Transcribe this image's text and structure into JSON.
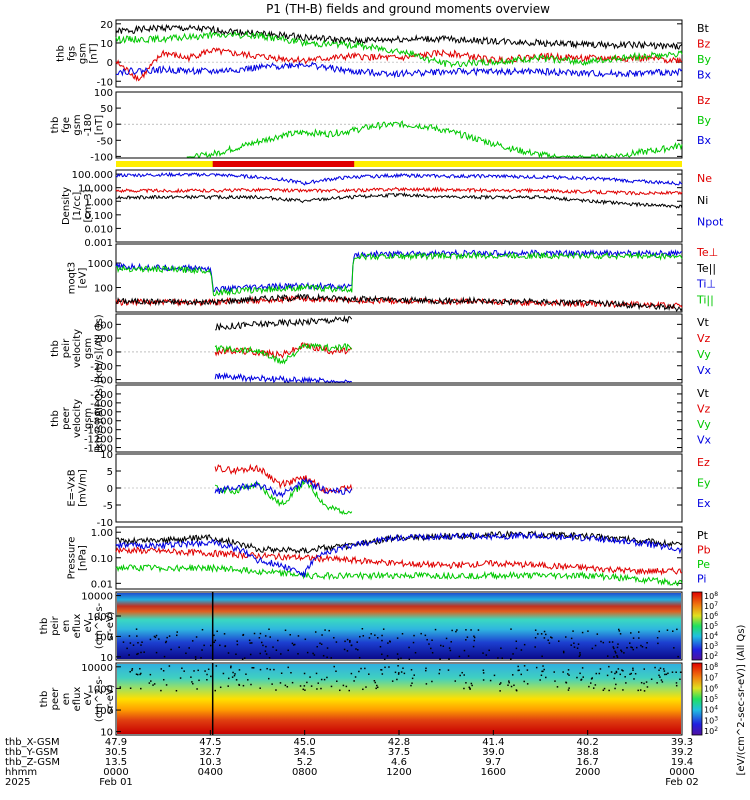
{
  "title": "P1 (TH-B) fields and ground moments overview",
  "colors": {
    "black": "#000000",
    "red": "#e00000",
    "green": "#00c800",
    "blue": "#0000e0",
    "yellow": "#ffee00"
  },
  "chart_data": [
    {
      "type": "line",
      "id": "fgs",
      "ylabel": [
        "thb",
        "fgs",
        "gsm",
        "[nT]"
      ],
      "yticks": [
        {
          "v": 20,
          "label": "20"
        },
        {
          "v": 10,
          "label": "10"
        },
        {
          "v": 0,
          "label": "0"
        },
        {
          "v": -10,
          "label": "-10"
        }
      ],
      "ylim": [
        -13,
        22
      ],
      "series": [
        {
          "name": "Bt",
          "color": "black",
          "x": [
            0,
            2,
            4,
            6,
            8,
            10,
            12,
            14,
            16,
            18,
            20,
            22,
            24
          ],
          "y": [
            16,
            18,
            17,
            15,
            13,
            11,
            12,
            12,
            11,
            10,
            9,
            9,
            8
          ]
        },
        {
          "name": "Bz",
          "color": "red",
          "x": [
            0,
            1,
            2,
            3,
            4,
            6,
            8,
            10,
            12,
            14,
            16,
            18,
            20,
            22,
            24
          ],
          "y": [
            0,
            -9,
            5,
            2,
            6,
            3,
            1,
            3,
            2,
            5,
            1,
            3,
            2,
            2,
            1
          ]
        },
        {
          "name": "By",
          "color": "green",
          "x": [
            0,
            2,
            4,
            6,
            8,
            10,
            12,
            14,
            16,
            18,
            20,
            22,
            24
          ],
          "y": [
            12,
            12,
            14,
            14,
            10,
            9,
            6,
            -1,
            0,
            2,
            0,
            3,
            4
          ]
        },
        {
          "name": "Bx",
          "color": "blue",
          "x": [
            0,
            2,
            4,
            6,
            8,
            10,
            12,
            14,
            16,
            18,
            20,
            22,
            24
          ],
          "y": [
            -5,
            -4,
            -5,
            -3,
            -1,
            -5,
            -6,
            -5,
            -5,
            -5,
            -6,
            -6,
            -5
          ]
        }
      ]
    },
    {
      "type": "line",
      "id": "fge",
      "ylabel": [
        "thb",
        "fge",
        "gsm",
        "-180",
        "[nT]"
      ],
      "yticks": [
        {
          "v": 100,
          "label": "100"
        },
        {
          "v": 50,
          "label": "50"
        },
        {
          "v": 0,
          "label": "0"
        },
        {
          "v": -50,
          "label": "-50"
        },
        {
          "v": -100,
          "label": "-100"
        }
      ],
      "ylim": [
        -105,
        100
      ],
      "legend_only": [
        "Bz",
        "By",
        "Bx"
      ],
      "series": [
        {
          "name": "By",
          "color": "green",
          "x": [
            3,
            4,
            5,
            6,
            7,
            8,
            9,
            10,
            11,
            12,
            13,
            14,
            15,
            16,
            17,
            18,
            19,
            20,
            21,
            22,
            23,
            24
          ],
          "y": [
            -105,
            -95,
            -75,
            -55,
            -35,
            -25,
            -30,
            -20,
            -5,
            0,
            -5,
            -20,
            -40,
            -60,
            -80,
            -95,
            -105,
            -105,
            -100,
            -90,
            -80,
            -65
          ]
        }
      ]
    },
    {
      "type": "line",
      "id": "density",
      "log": true,
      "ylabel": [
        "Density",
        "[1/cc]",
        "[cm-3]"
      ],
      "yticks": [
        {
          "v": 100,
          "label": "100.000"
        },
        {
          "v": 10,
          "label": "10.000"
        },
        {
          "v": 1,
          "label": "1.000"
        },
        {
          "v": 0.1,
          "label": "0.100"
        },
        {
          "v": 0.01,
          "label": "0.010"
        },
        {
          "v": 0.001,
          "label": "0.001"
        }
      ],
      "ylim": [
        0.001,
        200
      ],
      "series": [
        {
          "name": "Ne",
          "color": "red",
          "x": [
            0,
            2,
            4,
            6,
            8,
            10,
            12,
            14,
            16,
            18,
            20,
            22,
            24
          ],
          "y": [
            6,
            6,
            6,
            7,
            6,
            6,
            8,
            7,
            6,
            6,
            5,
            4,
            4
          ]
        },
        {
          "name": "Ni",
          "color": "black",
          "x": [
            0,
            2,
            4,
            6,
            8,
            10,
            12,
            14,
            16,
            18,
            20,
            22,
            24
          ],
          "y": [
            2,
            2,
            2,
            2,
            1,
            2,
            3,
            2,
            2,
            2,
            1,
            0.6,
            0.4
          ]
        },
        {
          "name": "Npot",
          "color": "blue",
          "x": [
            0,
            2,
            4,
            6,
            8,
            10,
            12,
            14,
            16,
            18,
            20,
            22,
            24
          ],
          "y": [
            80,
            90,
            90,
            60,
            20,
            60,
            80,
            70,
            70,
            60,
            50,
            30,
            20
          ]
        }
      ]
    },
    {
      "type": "line",
      "id": "moms",
      "log": true,
      "ylabel": [
        "moqt3",
        "[eV]"
      ],
      "yticks": [
        {
          "v": 1000,
          "label": "1000"
        },
        {
          "v": 100,
          "label": "100"
        }
      ],
      "ylim": [
        10,
        6000
      ],
      "series": [
        {
          "name": "Te⊥",
          "color": "red",
          "x": [
            0,
            4,
            6,
            8,
            10,
            12,
            16,
            20,
            24
          ],
          "y": [
            25,
            25,
            30,
            35,
            30,
            28,
            25,
            22,
            18
          ]
        },
        {
          "name": "Te||",
          "color": "black",
          "x": [
            0,
            4,
            6,
            8,
            10,
            12,
            16,
            20,
            24
          ],
          "y": [
            28,
            25,
            35,
            40,
            35,
            30,
            28,
            24,
            14
          ]
        },
        {
          "name": "Ti⊥",
          "color": "blue",
          "x": [
            0,
            4,
            4.1,
            6,
            8,
            10,
            10.1,
            12,
            16,
            20,
            24
          ],
          "y": [
            700,
            600,
            80,
            100,
            120,
            100,
            2200,
            2400,
            2500,
            2500,
            2400
          ]
        },
        {
          "name": "Ti||",
          "color": "green",
          "x": [
            0,
            4,
            4.1,
            6,
            8,
            10,
            10.1,
            12,
            16,
            20,
            24
          ],
          "y": [
            600,
            500,
            60,
            80,
            100,
            80,
            1800,
            1900,
            2000,
            2000,
            1900
          ]
        }
      ]
    },
    {
      "type": "line",
      "id": "peirv",
      "ylabel": [
        "thb",
        "peir",
        "velocity",
        "gsm",
        "[km/s](All Qs)"
      ],
      "yticks": [
        {
          "v": 400,
          "label": "400"
        },
        {
          "v": 200,
          "label": "200"
        },
        {
          "v": 0,
          "label": "0"
        },
        {
          "v": -200,
          "label": "-200"
        },
        {
          "v": -400,
          "label": "-400"
        }
      ],
      "ylim": [
        -450,
        550
      ],
      "series": [
        {
          "name": "Vt",
          "color": "black",
          "x": [
            4.2,
            5,
            6,
            7,
            8,
            9,
            10
          ],
          "y": [
            350,
            380,
            400,
            420,
            440,
            460,
            480
          ]
        },
        {
          "name": "Vz",
          "color": "red",
          "x": [
            4.2,
            5,
            6,
            7,
            8,
            9,
            10
          ],
          "y": [
            0,
            20,
            0,
            -50,
            100,
            20,
            10
          ]
        },
        {
          "name": "Vy",
          "color": "green",
          "x": [
            4.2,
            5,
            6,
            7,
            8,
            9,
            10
          ],
          "y": [
            50,
            40,
            20,
            -150,
            80,
            60,
            70
          ]
        },
        {
          "name": "Vx",
          "color": "blue",
          "x": [
            4.2,
            5,
            6,
            7,
            8,
            9,
            10
          ],
          "y": [
            -350,
            -370,
            -390,
            -400,
            -420,
            -430,
            -450
          ]
        }
      ]
    },
    {
      "type": "line",
      "id": "peerv",
      "ylabel": [
        "thb",
        "peer",
        "velocity",
        "gsm",
        "[km/s](All Qs)"
      ],
      "yticks": [
        {
          "v": -200,
          "label": "-200"
        },
        {
          "v": -400,
          "label": "-400"
        },
        {
          "v": -600,
          "label": "-600"
        },
        {
          "v": -800,
          "label": "-800"
        },
        {
          "v": -1000,
          "label": "-1000"
        },
        {
          "v": -1200,
          "label": "-1200"
        },
        {
          "v": -1400,
          "label": "-1400"
        }
      ],
      "ylim": [
        -1500,
        0
      ],
      "legend_only": [
        "Vt",
        "Vz",
        "Vy",
        "Vx"
      ],
      "series": []
    },
    {
      "type": "line",
      "id": "efield",
      "ylabel": [
        "E=-VxB",
        "[mV/m]"
      ],
      "yticks": [
        {
          "v": 10,
          "label": "10"
        },
        {
          "v": 5,
          "label": "5"
        },
        {
          "v": 0,
          "label": "0"
        },
        {
          "v": -5,
          "label": "-5"
        },
        {
          "v": -10,
          "label": "-10"
        }
      ],
      "ylim": [
        -10,
        10
      ],
      "series": [
        {
          "name": "Ez",
          "color": "red",
          "x": [
            4.2,
            5,
            6,
            7,
            8,
            9,
            10
          ],
          "y": [
            6,
            5,
            6,
            1,
            3,
            -1,
            0
          ]
        },
        {
          "name": "Ey",
          "color": "green",
          "x": [
            4.2,
            5,
            6,
            7,
            8,
            9,
            10
          ],
          "y": [
            0,
            -1,
            1,
            -5,
            2,
            -6,
            -7
          ]
        },
        {
          "name": "Ex",
          "color": "blue",
          "x": [
            4.2,
            5,
            6,
            7,
            8,
            9,
            10
          ],
          "y": [
            -1,
            0,
            1,
            -2,
            2,
            -1,
            -1
          ]
        }
      ]
    },
    {
      "type": "line",
      "id": "pressure",
      "log": true,
      "ylabel": [
        "Pressure",
        "[nPa]"
      ],
      "yticks": [
        {
          "v": 1,
          "label": "1.00"
        },
        {
          "v": 0.1,
          "label": "0.10"
        },
        {
          "v": 0.01,
          "label": "0.01"
        }
      ],
      "ylim": [
        0.006,
        1.6
      ],
      "series": [
        {
          "name": "Pt",
          "color": "black",
          "x": [
            0,
            2,
            4,
            6,
            8,
            10,
            12,
            14,
            16,
            18,
            20,
            22,
            24
          ],
          "y": [
            0.45,
            0.5,
            0.6,
            0.22,
            0.2,
            0.3,
            0.6,
            0.7,
            0.8,
            0.8,
            0.7,
            0.5,
            0.3
          ]
        },
        {
          "name": "Pb",
          "color": "red",
          "x": [
            0,
            2,
            4,
            6,
            8,
            10,
            12,
            14,
            16,
            18,
            20,
            22,
            24
          ],
          "y": [
            0.2,
            0.18,
            0.15,
            0.12,
            0.1,
            0.08,
            0.06,
            0.05,
            0.06,
            0.05,
            0.04,
            0.03,
            0.03
          ]
        },
        {
          "name": "Pe",
          "color": "green",
          "x": [
            0,
            2,
            4,
            6,
            8,
            10,
            12,
            14,
            16,
            18,
            20,
            22,
            24
          ],
          "y": [
            0.04,
            0.04,
            0.04,
            0.03,
            0.02,
            0.02,
            0.02,
            0.02,
            0.02,
            0.02,
            0.02,
            0.015,
            0.01
          ]
        },
        {
          "name": "Pi",
          "color": "blue",
          "x": [
            0,
            2,
            4,
            6,
            8,
            10,
            12,
            14,
            16,
            18,
            20,
            22,
            24
          ],
          "y": [
            0.3,
            0.3,
            0.4,
            0.08,
            0.02,
            0.3,
            0.6,
            0.7,
            0.7,
            0.7,
            0.6,
            0.4,
            0.2
          ]
        }
      ]
    },
    {
      "type": "heatmap",
      "id": "peir_spec",
      "ylabel": [
        "thb",
        "peir",
        "en",
        "eflux",
        "eV",
        "(cm^2-s-",
        "sr-eV)"
      ],
      "yticks": [
        {
          "v": 10000,
          "label": "10000"
        },
        {
          "v": 1000,
          "label": "1000"
        },
        {
          "v": 100,
          "label": "100"
        },
        {
          "v": 10,
          "label": "10"
        }
      ],
      "colorbar": [
        "10^8",
        "10^7",
        "10^6",
        "10^5",
        "10^4",
        "10^3",
        "10^2"
      ]
    },
    {
      "type": "heatmap",
      "id": "peer_spec",
      "ylabel": [
        "thb",
        "peer",
        "en",
        "eflux",
        "eV",
        "(cm^2-s-",
        "sr-eV)"
      ],
      "yticks": [
        {
          "v": 10000,
          "label": "10000"
        },
        {
          "v": 1000,
          "label": "1000"
        },
        {
          "v": 100,
          "label": "100"
        },
        {
          "v": 10,
          "label": "10"
        }
      ],
      "colorbar": [
        "10^8",
        "10^7",
        "10^6",
        "10^5",
        "10^4",
        "10^3",
        "10^2"
      ]
    }
  ],
  "colorbar_label": "[eV/(cm^2-sec-sr-eV)] (All Qs)",
  "mode_bar": {
    "red_start": 4.1,
    "red_end": 10.1
  },
  "xaxis": {
    "rows": [
      {
        "label": "thb_X-GSM",
        "values": [
          "47.9",
          "47.5",
          "45.0",
          "42.8",
          "41.4",
          "40.2",
          "39.3"
        ]
      },
      {
        "label": "thb_Y-GSM",
        "values": [
          "30.5",
          "32.7",
          "34.5",
          "37.5",
          "39.0",
          "38.8",
          "39.2"
        ]
      },
      {
        "label": "thb_Z-GSM",
        "values": [
          "13.5",
          "10.3",
          "5.2",
          "4.6",
          "9.7",
          "16.7",
          "19.4"
        ]
      },
      {
        "label": "hhmm",
        "values": [
          "0000",
          "0400",
          "0800",
          "1200",
          "1600",
          "2000",
          "0000"
        ]
      },
      {
        "label": "2025",
        "values": [
          "Feb 01",
          "",
          "",
          "",
          "",
          "",
          "Feb 02"
        ]
      }
    ]
  }
}
